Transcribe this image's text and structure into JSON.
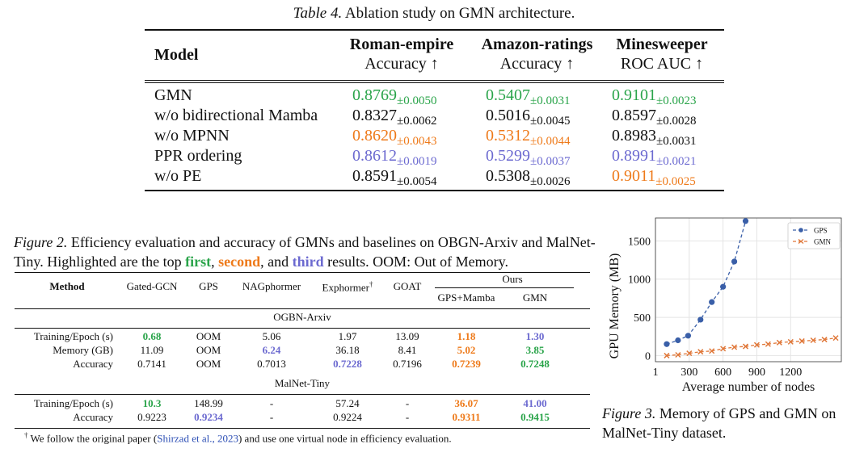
{
  "table4": {
    "caption_label": "Table 4.",
    "caption_text": " Ablation study on GMN architecture.",
    "header": {
      "model": "Model",
      "cols": [
        {
          "name": "Roman-empire",
          "metric": "Accuracy ↑"
        },
        {
          "name": "Amazon-ratings",
          "metric": "Accuracy ↑"
        },
        {
          "name": "Minesweeper",
          "metric": "ROC AUC ↑"
        }
      ]
    },
    "rows": [
      {
        "model": "GMN",
        "cells": [
          {
            "v": "0.8769",
            "sd": "±0.0050",
            "color": "green"
          },
          {
            "v": "0.5407",
            "sd": "±0.0031",
            "color": "green"
          },
          {
            "v": "0.9101",
            "sd": "±0.0023",
            "color": "green"
          }
        ]
      },
      {
        "model": "w/o bidirectional Mamba",
        "cells": [
          {
            "v": "0.8327",
            "sd": "±0.0062",
            "color": ""
          },
          {
            "v": "0.5016",
            "sd": "±0.0045",
            "color": ""
          },
          {
            "v": "0.8597",
            "sd": "±0.0028",
            "color": ""
          }
        ]
      },
      {
        "model": "w/o MPNN",
        "cells": [
          {
            "v": "0.8620",
            "sd": "±0.0043",
            "color": "orange"
          },
          {
            "v": "0.5312",
            "sd": "±0.0044",
            "color": "orange"
          },
          {
            "v": "0.8983",
            "sd": "±0.0031",
            "color": ""
          }
        ]
      },
      {
        "model": "PPR ordering",
        "cells": [
          {
            "v": "0.8612",
            "sd": "±0.0019",
            "color": "blue"
          },
          {
            "v": "0.5299",
            "sd": "±0.0037",
            "color": "blue"
          },
          {
            "v": "0.8991",
            "sd": "±0.0021",
            "color": "blue"
          }
        ]
      },
      {
        "model": "w/o PE",
        "cells": [
          {
            "v": "0.8591",
            "sd": "±0.0054",
            "color": ""
          },
          {
            "v": "0.5308",
            "sd": "±0.0026",
            "color": ""
          },
          {
            "v": "0.9011",
            "sd": "±0.0025",
            "color": "orange"
          }
        ]
      }
    ]
  },
  "figure2": {
    "caption_label": "Figure 2.",
    "caption_p1": " Efficiency evaluation and accuracy of GMNs and baselines on OBGN-Arxiv and MalNet-Tiny. Highlighted are the top ",
    "first": "first",
    "sep1": ", ",
    "second": "second",
    "sep2": ", and ",
    "third": "third",
    "caption_p2": " results. OOM: Out of Memory.",
    "table": {
      "method": "Method",
      "cols": [
        "Gated-GCN",
        "GPS",
        "NAGphormer",
        "Exphormer",
        "GOAT"
      ],
      "exphormer_mark": "†",
      "ours": "Ours",
      "ours_cols": [
        "GPS+Mamba",
        "GMN"
      ],
      "sections": [
        {
          "title": "OGBN-Arxiv",
          "rows": [
            {
              "label": "Training/Epoch (s)",
              "cells": [
                {
                  "v": "0.68",
                  "c": "green"
                },
                {
                  "v": "OOM",
                  "c": ""
                },
                {
                  "v": "5.06",
                  "c": ""
                },
                {
                  "v": "1.97",
                  "c": ""
                },
                {
                  "v": "13.09",
                  "c": ""
                },
                {
                  "v": "1.18",
                  "c": "orange"
                },
                {
                  "v": "1.30",
                  "c": "blue"
                }
              ]
            },
            {
              "label": "Memory (GB)",
              "cells": [
                {
                  "v": "11.09",
                  "c": ""
                },
                {
                  "v": "OOM",
                  "c": ""
                },
                {
                  "v": "6.24",
                  "c": "blue"
                },
                {
                  "v": "36.18",
                  "c": ""
                },
                {
                  "v": "8.41",
                  "c": ""
                },
                {
                  "v": "5.02",
                  "c": "orange"
                },
                {
                  "v": "3.85",
                  "c": "green"
                }
              ]
            },
            {
              "label": "Accuracy",
              "cells": [
                {
                  "v": "0.7141",
                  "c": ""
                },
                {
                  "v": "OOM",
                  "c": ""
                },
                {
                  "v": "0.7013",
                  "c": ""
                },
                {
                  "v": "0.7228",
                  "c": "blue"
                },
                {
                  "v": "0.7196",
                  "c": ""
                },
                {
                  "v": "0.7239",
                  "c": "orange"
                },
                {
                  "v": "0.7248",
                  "c": "green"
                }
              ]
            }
          ]
        },
        {
          "title": "MalNet-Tiny",
          "rows": [
            {
              "label": "Training/Epoch (s)",
              "cells": [
                {
                  "v": "10.3",
                  "c": "green"
                },
                {
                  "v": "148.99",
                  "c": ""
                },
                {
                  "v": "-",
                  "c": ""
                },
                {
                  "v": "57.24",
                  "c": ""
                },
                {
                  "v": "-",
                  "c": ""
                },
                {
                  "v": "36.07",
                  "c": "orange"
                },
                {
                  "v": "41.00",
                  "c": "blue"
                }
              ]
            },
            {
              "label": "Accuracy",
              "cells": [
                {
                  "v": "0.9223",
                  "c": ""
                },
                {
                  "v": "0.9234",
                  "c": "blue"
                },
                {
                  "v": "-",
                  "c": ""
                },
                {
                  "v": "0.9224",
                  "c": ""
                },
                {
                  "v": "-",
                  "c": ""
                },
                {
                  "v": "0.9311",
                  "c": "orange"
                },
                {
                  "v": "0.9415",
                  "c": "green"
                }
              ]
            }
          ]
        }
      ],
      "footnote_mark": "†",
      "footnote_pre": " We follow the original paper (",
      "footnote_cite": "Shirzad et al., 2023",
      "footnote_post": ") and use one virtual node in efficiency evaluation."
    }
  },
  "figure3": {
    "caption_label": "Figure 3.",
    "caption_text": " Memory of GPS and GMN on MalNet-Tiny dataset."
  },
  "chart_data": {
    "type": "line",
    "title": "",
    "xlabel": "Average number of nodes",
    "ylabel": "GPU Memory (MB)",
    "xlim": [
      0,
      1650
    ],
    "ylim": [
      -80,
      1800
    ],
    "xticks": [
      1,
      300,
      600,
      900,
      1200
    ],
    "yticks": [
      0,
      500,
      1000,
      1500
    ],
    "grid": true,
    "legend_position": "top-right",
    "series": [
      {
        "name": "GPS",
        "color": "#3a5fa8",
        "marker": "circle",
        "x": [
          100,
          200,
          290,
          400,
          500,
          600,
          700,
          800
        ],
        "y": [
          150,
          200,
          260,
          470,
          700,
          900,
          1230,
          1760
        ]
      },
      {
        "name": "GMN",
        "color": "#e0783a",
        "marker": "x",
        "x": [
          100,
          200,
          300,
          400,
          500,
          600,
          700,
          800,
          900,
          1000,
          1100,
          1200,
          1300,
          1400,
          1500,
          1600
        ],
        "y": [
          0,
          10,
          30,
          50,
          60,
          90,
          110,
          120,
          140,
          150,
          170,
          180,
          190,
          200,
          210,
          230
        ]
      }
    ]
  }
}
